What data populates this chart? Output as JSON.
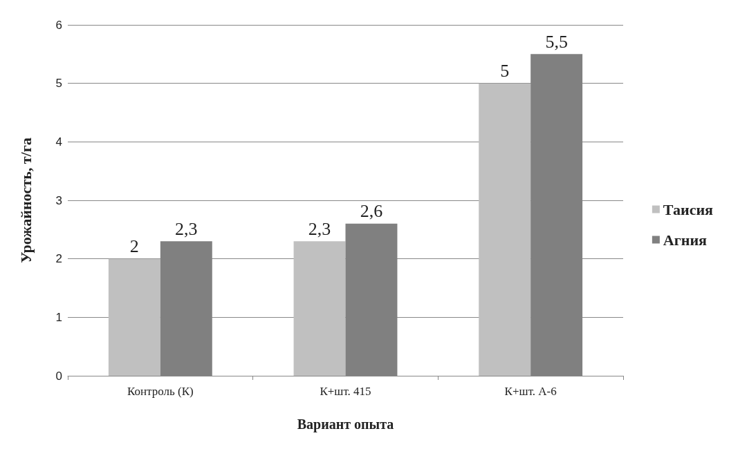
{
  "chart_data": {
    "type": "bar",
    "xlabel": "Вариант опыта",
    "ylabel": "Урожайность, т/га",
    "categories": [
      "Контроль (К)",
      "К+шт. 415",
      "К+шт. А-6"
    ],
    "series": [
      {
        "name": "Таисия",
        "color": "#c0c0c0",
        "values": [
          2,
          2.3,
          5
        ],
        "value_labels": [
          "2",
          "2,3",
          "5"
        ]
      },
      {
        "name": "Агния",
        "color": "#808080",
        "values": [
          2.3,
          2.6,
          5.5
        ],
        "value_labels": [
          "2,3",
          "2,6",
          "5,5"
        ]
      }
    ],
    "ylim": [
      0,
      6
    ],
    "yticks": [
      0,
      1,
      2,
      3,
      4,
      5,
      6
    ],
    "grid": "y",
    "legend": "right"
  }
}
